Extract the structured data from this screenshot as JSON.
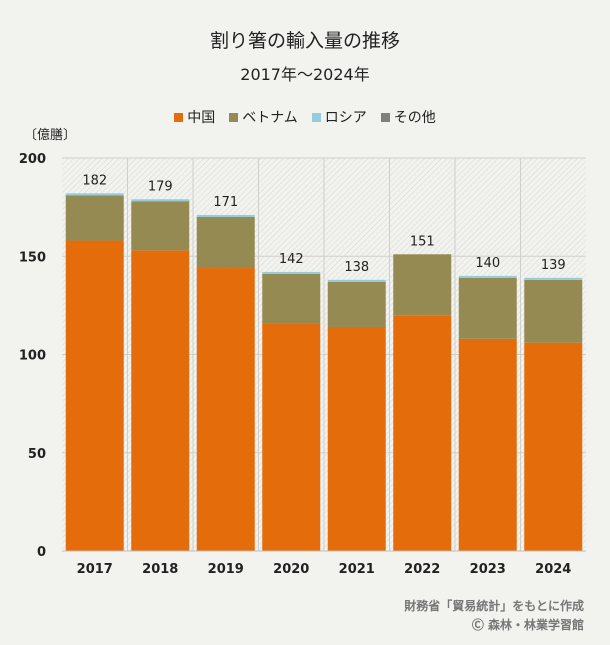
{
  "chart_data": {
    "type": "bar",
    "stacked": true,
    "title": "割り箸の輸入量の推移",
    "subtitle": "2017年～2024年",
    "unit_label": "〔億膳〕",
    "categories": [
      "2017",
      "2018",
      "2019",
      "2020",
      "2021",
      "2022",
      "2023",
      "2024"
    ],
    "series": [
      {
        "name": "中国",
        "color": "#e46c0a",
        "values": [
          158,
          153,
          144,
          116,
          114,
          120,
          108,
          106
        ]
      },
      {
        "name": "ベトナム",
        "color": "#958b52",
        "values": [
          23,
          25,
          26,
          25,
          23,
          31,
          31,
          32
        ]
      },
      {
        "name": "ロシア",
        "color": "#93cddd",
        "values": [
          1,
          1,
          1,
          1,
          1,
          0,
          1,
          1
        ]
      },
      {
        "name": "その他",
        "color": "#7f7f7f",
        "values": [
          0,
          0,
          0,
          0,
          0,
          0,
          0,
          0
        ]
      }
    ],
    "totals": [
      "182",
      "179",
      "171",
      "142",
      "138",
      "151",
      "140",
      "139"
    ],
    "yticks": [
      "0",
      "50",
      "100",
      "150",
      "200"
    ],
    "ylim": [
      0,
      200
    ],
    "grid": true,
    "legend_position": "top"
  },
  "source": {
    "line1": "財務省「貿易統計」をもとに作成",
    "line2": "Ⓒ 森林・林業学習館"
  }
}
